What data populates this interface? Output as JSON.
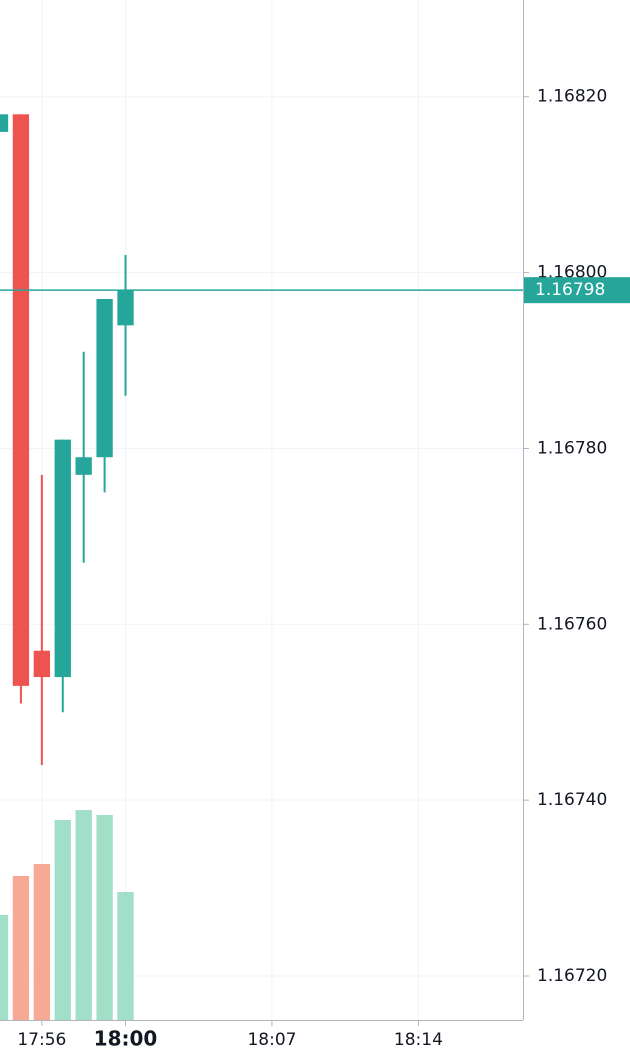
{
  "chart_data": {
    "type": "candlestick",
    "x": [
      "17:54",
      "17:55",
      "17:56",
      "17:57",
      "17:58",
      "17:59",
      "18:00"
    ],
    "open": [
      1.16816,
      1.16818,
      1.16757,
      1.16754,
      1.16777,
      1.16779,
      1.16794
    ],
    "high": [
      1.16818,
      1.16818,
      1.16777,
      1.16781,
      1.16791,
      1.16797,
      1.16802
    ],
    "low": [
      1.16816,
      1.16751,
      1.16744,
      1.1675,
      1.16767,
      1.16775,
      1.16786
    ],
    "close": [
      1.16818,
      1.16753,
      1.16754,
      1.16781,
      1.16779,
      1.16797,
      1.16798
    ],
    "volume": [
      105,
      144,
      156,
      200,
      210,
      205,
      128
    ],
    "up_color": "#26a69a",
    "down_color": "#ef5350",
    "volume_up_color": "#a1dfc8",
    "volume_down_color": "#f8a995",
    "xlim": [
      "17:54",
      "18:19"
    ],
    "xticks": [
      "17:56",
      "18:00",
      "18:07",
      "18:14"
    ],
    "xticks_bold": [
      false,
      true,
      false,
      false
    ],
    "ylim": [
      1.16715,
      1.16831
    ],
    "yticks": [
      {
        "value": 1.1672,
        "label": "1.16720"
      },
      {
        "value": 1.1674,
        "label": "1.16740"
      },
      {
        "value": 1.1676,
        "label": "1.16760"
      },
      {
        "value": 1.1678,
        "label": "1.16780"
      },
      {
        "value": 1.168,
        "label": "1.16800"
      },
      {
        "value": 1.1682,
        "label": "1.16820"
      }
    ],
    "last_price": {
      "value": 1.16798,
      "label": "1.16798"
    },
    "grid": true
  }
}
